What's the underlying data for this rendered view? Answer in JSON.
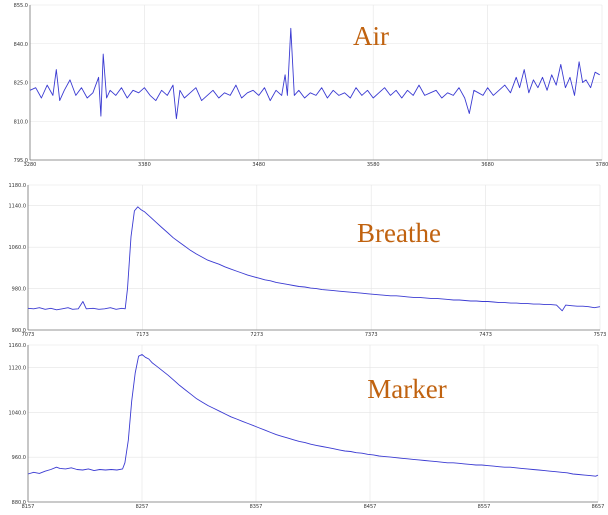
{
  "chart_data": [
    {
      "type": "line",
      "title": "Air",
      "series": [
        {
          "name": "",
          "color": "#3b3bd2"
        }
      ],
      "x_ticks": [
        3280,
        3380,
        3480,
        3580,
        3680,
        3780
      ],
      "y_ticks": [
        795.0,
        810.0,
        825.0,
        840.0,
        855.0
      ],
      "xlim": [
        3280,
        3780
      ],
      "ylim": [
        795,
        855
      ],
      "grid": true,
      "points": [
        [
          3280,
          822
        ],
        [
          3285,
          823
        ],
        [
          3290,
          819
        ],
        [
          3295,
          824
        ],
        [
          3300,
          820
        ],
        [
          3303,
          830
        ],
        [
          3306,
          818
        ],
        [
          3310,
          822
        ],
        [
          3315,
          826
        ],
        [
          3320,
          820
        ],
        [
          3325,
          823
        ],
        [
          3330,
          819
        ],
        [
          3335,
          821
        ],
        [
          3340,
          827
        ],
        [
          3342,
          812
        ],
        [
          3344,
          836
        ],
        [
          3347,
          819
        ],
        [
          3350,
          822
        ],
        [
          3355,
          820
        ],
        [
          3360,
          823
        ],
        [
          3365,
          819
        ],
        [
          3370,
          822
        ],
        [
          3375,
          821
        ],
        [
          3380,
          823
        ],
        [
          3385,
          820
        ],
        [
          3390,
          818
        ],
        [
          3395,
          822
        ],
        [
          3400,
          820
        ],
        [
          3405,
          824
        ],
        [
          3408,
          811
        ],
        [
          3411,
          822
        ],
        [
          3415,
          819
        ],
        [
          3420,
          821
        ],
        [
          3425,
          823
        ],
        [
          3430,
          818
        ],
        [
          3435,
          820
        ],
        [
          3440,
          822
        ],
        [
          3445,
          819
        ],
        [
          3450,
          821
        ],
        [
          3455,
          820
        ],
        [
          3460,
          824
        ],
        [
          3465,
          819
        ],
        [
          3470,
          821
        ],
        [
          3475,
          822
        ],
        [
          3480,
          820
        ],
        [
          3485,
          823
        ],
        [
          3490,
          818
        ],
        [
          3495,
          822
        ],
        [
          3500,
          820
        ],
        [
          3503,
          828
        ],
        [
          3505,
          820
        ],
        [
          3508,
          846
        ],
        [
          3511,
          820
        ],
        [
          3515,
          822
        ],
        [
          3520,
          819
        ],
        [
          3525,
          821
        ],
        [
          3530,
          820
        ],
        [
          3535,
          823
        ],
        [
          3540,
          819
        ],
        [
          3545,
          822
        ],
        [
          3550,
          820
        ],
        [
          3555,
          821
        ],
        [
          3560,
          819
        ],
        [
          3565,
          823
        ],
        [
          3570,
          820
        ],
        [
          3575,
          822
        ],
        [
          3580,
          819
        ],
        [
          3585,
          821
        ],
        [
          3590,
          823
        ],
        [
          3595,
          820
        ],
        [
          3600,
          822
        ],
        [
          3605,
          819
        ],
        [
          3610,
          822
        ],
        [
          3615,
          820
        ],
        [
          3620,
          824
        ],
        [
          3625,
          820
        ],
        [
          3630,
          821
        ],
        [
          3635,
          822
        ],
        [
          3640,
          819
        ],
        [
          3645,
          821
        ],
        [
          3650,
          820
        ],
        [
          3655,
          823
        ],
        [
          3660,
          819
        ],
        [
          3664,
          813
        ],
        [
          3668,
          822
        ],
        [
          3672,
          821
        ],
        [
          3676,
          820
        ],
        [
          3680,
          823
        ],
        [
          3685,
          820
        ],
        [
          3690,
          822
        ],
        [
          3695,
          824
        ],
        [
          3700,
          821
        ],
        [
          3705,
          827
        ],
        [
          3708,
          823
        ],
        [
          3712,
          830
        ],
        [
          3716,
          821
        ],
        [
          3720,
          826
        ],
        [
          3724,
          823
        ],
        [
          3728,
          827
        ],
        [
          3732,
          822
        ],
        [
          3736,
          828
        ],
        [
          3740,
          824
        ],
        [
          3744,
          832
        ],
        [
          3748,
          823
        ],
        [
          3752,
          827
        ],
        [
          3756,
          820
        ],
        [
          3760,
          833
        ],
        [
          3763,
          825
        ],
        [
          3766,
          826
        ],
        [
          3770,
          823
        ],
        [
          3774,
          829
        ],
        [
          3778,
          828
        ]
      ]
    },
    {
      "type": "line",
      "title": "Breathe",
      "series": [
        {
          "name": "",
          "color": "#3b3bd2"
        }
      ],
      "x_ticks": [
        7073,
        7173,
        7273,
        7373,
        7473,
        7573
      ],
      "y_ticks": [
        900.0,
        980.0,
        1060.0,
        1140.0,
        1180.0
      ],
      "xlim": [
        7073,
        7573
      ],
      "ylim": [
        900,
        1180
      ],
      "grid": true,
      "points": [
        [
          7073,
          942
        ],
        [
          7078,
          941
        ],
        [
          7083,
          943
        ],
        [
          7088,
          940
        ],
        [
          7093,
          942
        ],
        [
          7098,
          939
        ],
        [
          7103,
          941
        ],
        [
          7108,
          943
        ],
        [
          7112,
          940
        ],
        [
          7117,
          941
        ],
        [
          7121,
          955
        ],
        [
          7124,
          941
        ],
        [
          7130,
          942
        ],
        [
          7135,
          940
        ],
        [
          7140,
          941
        ],
        [
          7145,
          943
        ],
        [
          7150,
          940
        ],
        [
          7155,
          942
        ],
        [
          7158,
          941
        ],
        [
          7160,
          980
        ],
        [
          7163,
          1080
        ],
        [
          7166,
          1130
        ],
        [
          7169,
          1138
        ],
        [
          7172,
          1132
        ],
        [
          7175,
          1128
        ],
        [
          7180,
          1118
        ],
        [
          7185,
          1108
        ],
        [
          7190,
          1098
        ],
        [
          7195,
          1088
        ],
        [
          7200,
          1078
        ],
        [
          7205,
          1070
        ],
        [
          7210,
          1062
        ],
        [
          7215,
          1054
        ],
        [
          7220,
          1047
        ],
        [
          7225,
          1041
        ],
        [
          7230,
          1035
        ],
        [
          7235,
          1031
        ],
        [
          7240,
          1027
        ],
        [
          7245,
          1022
        ],
        [
          7250,
          1018
        ],
        [
          7255,
          1014
        ],
        [
          7260,
          1010
        ],
        [
          7265,
          1006
        ],
        [
          7270,
          1003
        ],
        [
          7275,
          1000
        ],
        [
          7280,
          997
        ],
        [
          7285,
          995
        ],
        [
          7290,
          992
        ],
        [
          7295,
          990
        ],
        [
          7300,
          988
        ],
        [
          7305,
          986
        ],
        [
          7310,
          984
        ],
        [
          7315,
          983
        ],
        [
          7320,
          981
        ],
        [
          7325,
          980
        ],
        [
          7330,
          978
        ],
        [
          7335,
          977
        ],
        [
          7340,
          976
        ],
        [
          7345,
          975
        ],
        [
          7350,
          974
        ],
        [
          7355,
          973
        ],
        [
          7360,
          972
        ],
        [
          7365,
          971
        ],
        [
          7370,
          970
        ],
        [
          7375,
          969
        ],
        [
          7380,
          968
        ],
        [
          7385,
          967
        ],
        [
          7390,
          966
        ],
        [
          7395,
          966
        ],
        [
          7400,
          965
        ],
        [
          7405,
          964
        ],
        [
          7410,
          963
        ],
        [
          7415,
          963
        ],
        [
          7420,
          962
        ],
        [
          7425,
          961
        ],
        [
          7430,
          961
        ],
        [
          7435,
          960
        ],
        [
          7440,
          959
        ],
        [
          7445,
          958
        ],
        [
          7450,
          958
        ],
        [
          7455,
          957
        ],
        [
          7460,
          956
        ],
        [
          7465,
          956
        ],
        [
          7470,
          955
        ],
        [
          7475,
          955
        ],
        [
          7480,
          954
        ],
        [
          7485,
          953
        ],
        [
          7490,
          953
        ],
        [
          7495,
          952
        ],
        [
          7500,
          952
        ],
        [
          7505,
          951
        ],
        [
          7510,
          951
        ],
        [
          7515,
          950
        ],
        [
          7520,
          950
        ],
        [
          7525,
          949
        ],
        [
          7530,
          949
        ],
        [
          7535,
          948
        ],
        [
          7540,
          937
        ],
        [
          7543,
          948
        ],
        [
          7548,
          947
        ],
        [
          7553,
          946
        ],
        [
          7558,
          946
        ],
        [
          7563,
          945
        ],
        [
          7568,
          943
        ],
        [
          7573,
          945
        ]
      ]
    },
    {
      "type": "line",
      "title": "Marker",
      "series": [
        {
          "name": "",
          "color": "#3b3bd2"
        }
      ],
      "x_ticks": [
        8157,
        8257,
        8357,
        8457,
        8557,
        8657
      ],
      "y_ticks": [
        880.0,
        960.0,
        1040.0,
        1120.0,
        1160.0
      ],
      "xlim": [
        8157,
        8657
      ],
      "ylim": [
        880,
        1160
      ],
      "grid": true,
      "points": [
        [
          8157,
          930
        ],
        [
          8162,
          933
        ],
        [
          8167,
          931
        ],
        [
          8172,
          935
        ],
        [
          8177,
          938
        ],
        [
          8182,
          942
        ],
        [
          8185,
          940
        ],
        [
          8190,
          939
        ],
        [
          8195,
          941
        ],
        [
          8200,
          938
        ],
        [
          8205,
          937
        ],
        [
          8210,
          939
        ],
        [
          8215,
          936
        ],
        [
          8220,
          938
        ],
        [
          8225,
          937
        ],
        [
          8230,
          938
        ],
        [
          8235,
          937
        ],
        [
          8240,
          939
        ],
        [
          8242,
          950
        ],
        [
          8245,
          990
        ],
        [
          8248,
          1060
        ],
        [
          8251,
          1110
        ],
        [
          8254,
          1140
        ],
        [
          8257,
          1143
        ],
        [
          8260,
          1138
        ],
        [
          8263,
          1135
        ],
        [
          8266,
          1128
        ],
        [
          8270,
          1122
        ],
        [
          8275,
          1114
        ],
        [
          8280,
          1106
        ],
        [
          8285,
          1097
        ],
        [
          8290,
          1088
        ],
        [
          8295,
          1080
        ],
        [
          8300,
          1072
        ],
        [
          8305,
          1064
        ],
        [
          8310,
          1058
        ],
        [
          8315,
          1052
        ],
        [
          8320,
          1047
        ],
        [
          8325,
          1042
        ],
        [
          8330,
          1037
        ],
        [
          8335,
          1032
        ],
        [
          8340,
          1028
        ],
        [
          8345,
          1024
        ],
        [
          8350,
          1020
        ],
        [
          8355,
          1016
        ],
        [
          8360,
          1012
        ],
        [
          8365,
          1008
        ],
        [
          8370,
          1004
        ],
        [
          8375,
          1000
        ],
        [
          8380,
          997
        ],
        [
          8385,
          994
        ],
        [
          8390,
          991
        ],
        [
          8395,
          988
        ],
        [
          8400,
          986
        ],
        [
          8405,
          983
        ],
        [
          8410,
          981
        ],
        [
          8415,
          979
        ],
        [
          8420,
          977
        ],
        [
          8425,
          975
        ],
        [
          8430,
          973
        ],
        [
          8435,
          971
        ],
        [
          8440,
          970
        ],
        [
          8445,
          968
        ],
        [
          8450,
          967
        ],
        [
          8455,
          965
        ],
        [
          8460,
          964
        ],
        [
          8465,
          962
        ],
        [
          8470,
          961
        ],
        [
          8475,
          960
        ],
        [
          8480,
          959
        ],
        [
          8485,
          958
        ],
        [
          8490,
          957
        ],
        [
          8495,
          956
        ],
        [
          8500,
          955
        ],
        [
          8505,
          954
        ],
        [
          8510,
          953
        ],
        [
          8515,
          952
        ],
        [
          8520,
          951
        ],
        [
          8525,
          950
        ],
        [
          8530,
          950
        ],
        [
          8535,
          949
        ],
        [
          8540,
          948
        ],
        [
          8545,
          947
        ],
        [
          8550,
          946
        ],
        [
          8555,
          946
        ],
        [
          8560,
          945
        ],
        [
          8565,
          944
        ],
        [
          8570,
          943
        ],
        [
          8575,
          942
        ],
        [
          8580,
          942
        ],
        [
          8585,
          941
        ],
        [
          8590,
          940
        ],
        [
          8595,
          939
        ],
        [
          8600,
          938
        ],
        [
          8605,
          937
        ],
        [
          8610,
          936
        ],
        [
          8615,
          935
        ],
        [
          8620,
          934
        ],
        [
          8625,
          933
        ],
        [
          8630,
          932
        ],
        [
          8635,
          930
        ],
        [
          8640,
          929
        ],
        [
          8645,
          928
        ],
        [
          8650,
          927
        ],
        [
          8655,
          926
        ],
        [
          8657,
          928
        ]
      ]
    }
  ]
}
